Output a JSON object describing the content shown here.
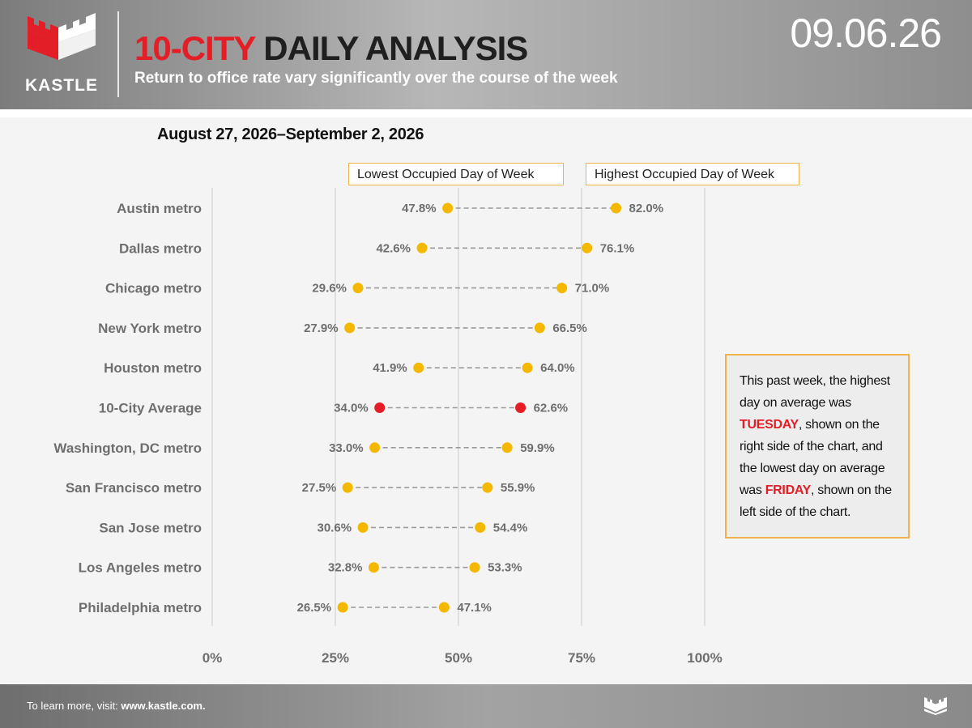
{
  "header": {
    "brand": "KASTLE",
    "title_accent": "10-CITY",
    "title_rest": "DAILY ANALYSIS",
    "subtitle": "Return to office rate vary significantly over the course of the week",
    "date_stamp": "09.06.26"
  },
  "colors": {
    "brand_red": "#e41e26",
    "dot_yellow": "#f5b800",
    "highlight_red": "#e41e26",
    "label_gray": "#6e6e6e",
    "border_orange": "#f0b24a"
  },
  "chart_data": {
    "type": "dumbbell",
    "title": "August 27, 2026–September 2, 2026",
    "legend": [
      "Lowest Occupied Day of Week",
      "Highest Occupied Day of Week"
    ],
    "x_ticks": [
      "0%",
      "25%",
      "50%",
      "75%",
      "100%"
    ],
    "xlim": [
      0,
      100
    ],
    "grid": true,
    "categories": [
      "Austin metro",
      "Dallas metro",
      "Chicago metro",
      "New York metro",
      "Houston metro",
      "10-City Average",
      "Washington, DC metro",
      "San Francisco metro",
      "San Jose metro",
      "Los Angeles metro",
      "Philadelphia metro"
    ],
    "series": [
      {
        "name": "Lowest Occupied Day of Week",
        "values": [
          47.8,
          42.6,
          29.6,
          27.9,
          41.9,
          34.0,
          33.0,
          27.5,
          30.6,
          32.8,
          26.5
        ]
      },
      {
        "name": "Highest Occupied Day of Week",
        "values": [
          82.0,
          76.1,
          71.0,
          66.5,
          64.0,
          62.6,
          59.9,
          55.9,
          54.4,
          53.3,
          47.1
        ]
      }
    ],
    "low_labels": [
      "47.8%",
      "42.6%",
      "29.6%",
      "27.9%",
      "41.9%",
      "34.0%",
      "33.0%",
      "27.5%",
      "30.6%",
      "32.8%",
      "26.5%"
    ],
    "high_labels": [
      "82.0%",
      "76.1%",
      "71.0%",
      "66.5%",
      "64.0%",
      "62.6%",
      "59.9%",
      "55.9%",
      "54.4%",
      "53.3%",
      "47.1%"
    ],
    "highlight_category": "10-City Average"
  },
  "note": {
    "part1": "This past week, the highest day on average was ",
    "high_day": "TUESDAY",
    "part2": ", shown on the right side of the chart, and the lowest day on average was ",
    "low_day": "FRIDAY",
    "part3": ", shown on the left side of the chart."
  },
  "footer": {
    "prefix": "To learn more, visit: ",
    "link": "www.kastle.com."
  }
}
